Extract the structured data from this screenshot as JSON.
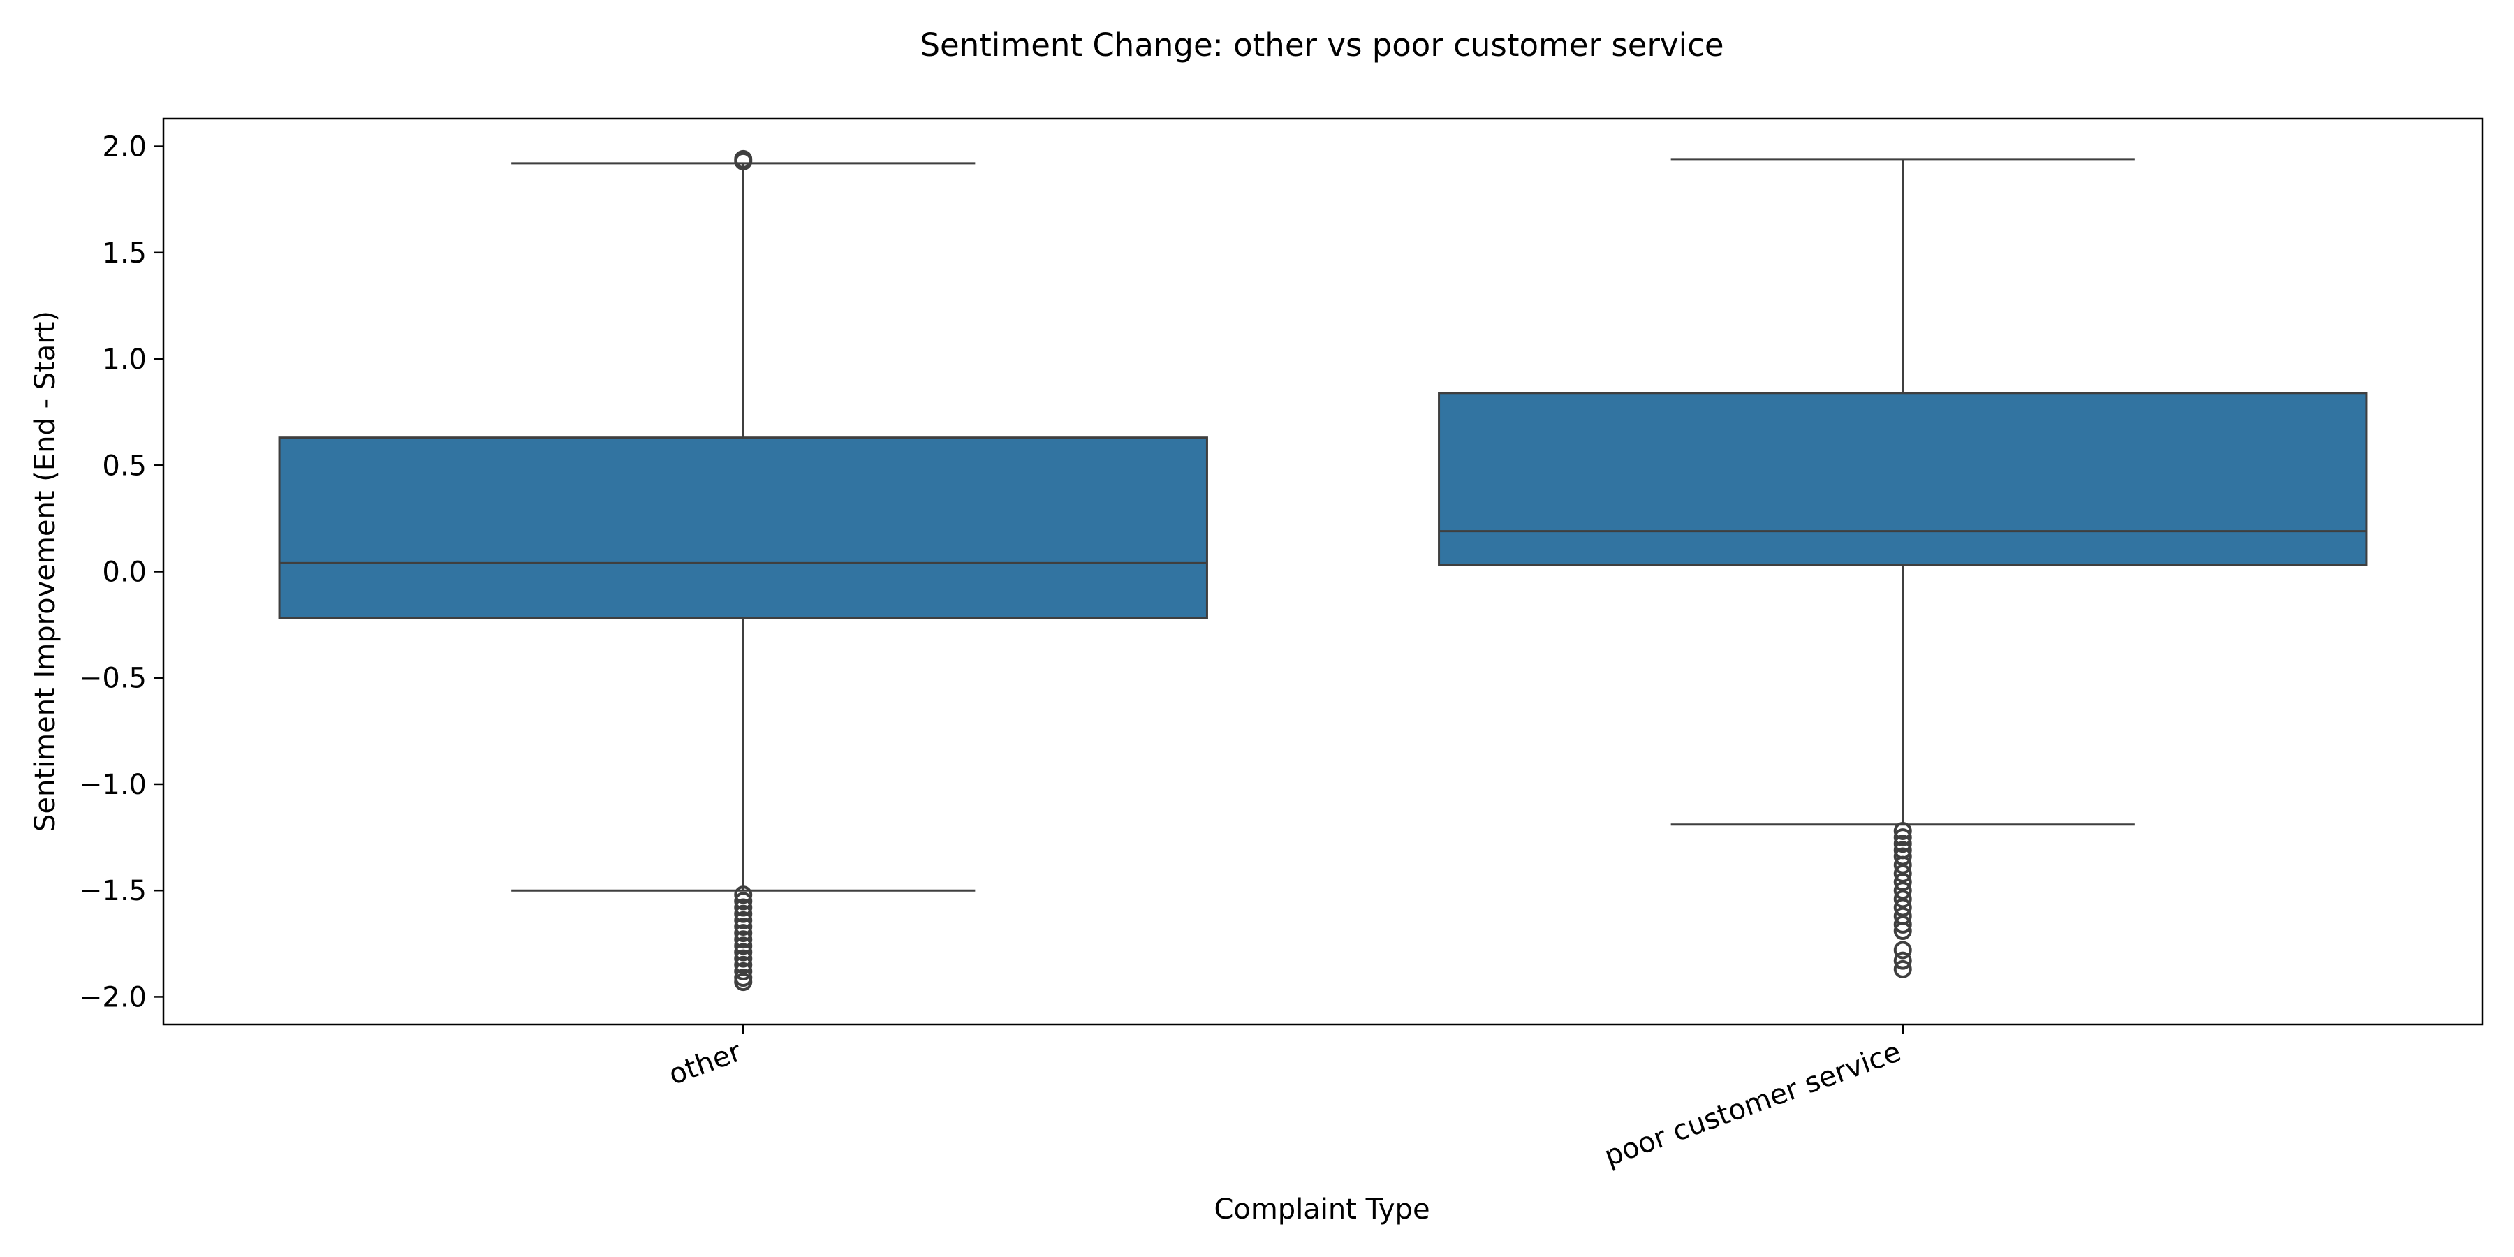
{
  "chart_data": {
    "type": "box",
    "title": "Sentiment Change: other vs poor customer service",
    "xlabel": "Complaint Type",
    "ylabel": "Sentiment Improvement (End - Start)",
    "ylim": [
      -2.13,
      2.13
    ],
    "yticks": [
      2.0,
      1.5,
      1.0,
      0.5,
      0.0,
      -0.5,
      -1.0,
      -1.5,
      -2.0
    ],
    "ytick_labels": [
      "2.0",
      "1.5",
      "1.0",
      "0.5",
      "0.0",
      "−0.5",
      "−1.0",
      "−1.5",
      "−2.0"
    ],
    "categories": [
      "other",
      "poor customer service"
    ],
    "boxes": [
      {
        "category": "other",
        "whisker_low": -1.5,
        "q1": -0.22,
        "median": 0.04,
        "q3": 0.63,
        "whisker_high": 1.92,
        "outliers": [
          1.94,
          1.93,
          -1.52,
          -1.55,
          -1.58,
          -1.61,
          -1.64,
          -1.67,
          -1.7,
          -1.73,
          -1.76,
          -1.79,
          -1.82,
          -1.85,
          -1.88,
          -1.91,
          -1.93
        ]
      },
      {
        "category": "poor customer service",
        "whisker_low": -1.19,
        "q1": 0.03,
        "median": 0.19,
        "q3": 0.84,
        "whisker_high": 1.94,
        "outliers": [
          -1.22,
          -1.25,
          -1.28,
          -1.31,
          -1.34,
          -1.38,
          -1.42,
          -1.46,
          -1.5,
          -1.54,
          -1.58,
          -1.62,
          -1.66,
          -1.69,
          -1.78,
          -1.83,
          -1.87
        ]
      }
    ],
    "box_color": "#3274a1",
    "line_color": "#3f3f3f",
    "grid": false,
    "legend": "none"
  }
}
